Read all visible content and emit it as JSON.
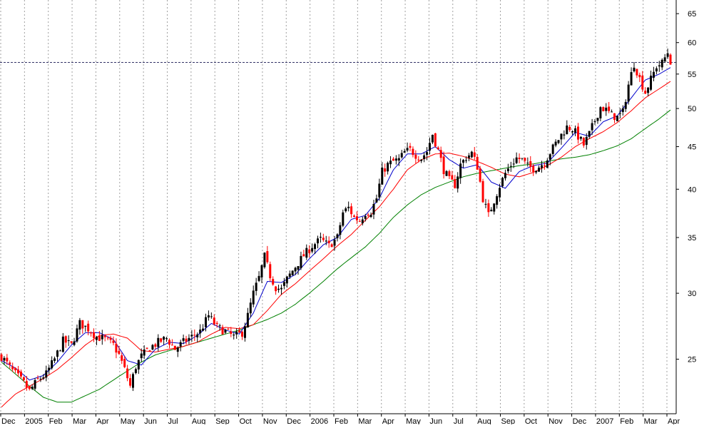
{
  "chart_data": {
    "type": "candlestick",
    "scale": "log",
    "grid": "vertical-dotted",
    "ylim": [
      21.5,
      67.5
    ],
    "y_ticks": [
      25,
      30,
      35,
      40,
      45,
      50,
      55,
      60,
      65
    ],
    "x_ticks": [
      "Dec",
      "2005",
      "Feb",
      "Mar",
      "Apr",
      "May",
      "Jun",
      "Jul",
      "Aug",
      "Sep",
      "Oct",
      "Nov",
      "Dec",
      "2006",
      "Feb",
      "Mar",
      "Apr",
      "May",
      "Jun",
      "Jul",
      "Aug",
      "Sep",
      "Oct",
      "Nov",
      "Dec",
      "2007",
      "Feb",
      "Mar",
      "Apr"
    ],
    "reference_line": 56.8,
    "colors": {
      "up": "#000000",
      "down": "#ff0000",
      "ma_short": "#0000cc",
      "ma_mid": "#ff0000",
      "ma_long": "#008000",
      "grid": "#a0a0a0"
    },
    "price_path": [
      [
        0,
        25.2
      ],
      [
        4,
        24.2
      ],
      [
        8,
        23.4
      ],
      [
        10,
        22.9
      ],
      [
        13,
        23.6
      ],
      [
        16,
        24.0
      ],
      [
        19,
        25.0
      ],
      [
        22,
        26.3
      ],
      [
        25,
        26.0
      ],
      [
        28,
        27.6
      ],
      [
        31,
        27.2
      ],
      [
        34,
        26.6
      ],
      [
        37,
        26.4
      ],
      [
        40,
        26.0
      ],
      [
        42,
        25.3
      ],
      [
        44,
        24.3
      ],
      [
        46,
        23.2
      ],
      [
        48,
        24.5
      ],
      [
        50,
        25.2
      ],
      [
        53,
        25.8
      ],
      [
        56,
        26.2
      ],
      [
        59,
        26.5
      ],
      [
        62,
        25.7
      ],
      [
        65,
        26.2
      ],
      [
        68,
        26.6
      ],
      [
        71,
        27.0
      ],
      [
        74,
        28.2
      ],
      [
        77,
        27.3
      ],
      [
        80,
        27.0
      ],
      [
        83,
        26.6
      ],
      [
        86,
        26.9
      ],
      [
        88,
        28.2
      ],
      [
        90,
        30.0
      ],
      [
        92,
        31.3
      ],
      [
        94,
        33.2
      ],
      [
        96,
        31.5
      ],
      [
        98,
        30.5
      ],
      [
        100,
        30.3
      ],
      [
        102,
        31.2
      ],
      [
        105,
        32.3
      ],
      [
        108,
        33.3
      ],
      [
        111,
        34.2
      ],
      [
        114,
        34.8
      ],
      [
        117,
        34.2
      ],
      [
        120,
        35.0
      ],
      [
        122,
        37.5
      ],
      [
        124,
        38.0
      ],
      [
        126,
        37.0
      ],
      [
        128,
        36.7
      ],
      [
        130,
        37.5
      ],
      [
        132,
        37.6
      ],
      [
        134,
        39.0
      ],
      [
        136,
        42.0
      ],
      [
        138,
        42.8
      ],
      [
        140,
        43.2
      ],
      [
        142,
        43.4
      ],
      [
        144,
        44.3
      ],
      [
        146,
        44.6
      ],
      [
        148,
        44.0
      ],
      [
        150,
        43.6
      ],
      [
        152,
        44.4
      ],
      [
        154,
        46.6
      ],
      [
        156,
        44.5
      ],
      [
        158,
        42.2
      ],
      [
        160,
        41.0
      ],
      [
        162,
        40.5
      ],
      [
        164,
        42.8
      ],
      [
        166,
        43.7
      ],
      [
        168,
        44.2
      ],
      [
        170,
        42.6
      ],
      [
        172,
        39.0
      ],
      [
        174,
        37.2
      ],
      [
        176,
        38.8
      ],
      [
        178,
        40.4
      ],
      [
        180,
        41.8
      ],
      [
        182,
        42.8
      ],
      [
        184,
        43.6
      ],
      [
        186,
        43.4
      ],
      [
        188,
        42.6
      ],
      [
        190,
        42.4
      ],
      [
        192,
        42.6
      ],
      [
        194,
        43.1
      ],
      [
        196,
        44.3
      ],
      [
        198,
        45.4
      ],
      [
        200,
        46.5
      ],
      [
        202,
        47.5
      ],
      [
        204,
        47.3
      ],
      [
        206,
        46.3
      ],
      [
        208,
        45.2
      ],
      [
        210,
        46.6
      ],
      [
        212,
        48.4
      ],
      [
        214,
        50.2
      ],
      [
        216,
        49.8
      ],
      [
        218,
        49.1
      ],
      [
        220,
        48.8
      ],
      [
        222,
        49.5
      ],
      [
        224,
        53.4
      ],
      [
        226,
        56.6
      ],
      [
        228,
        54.3
      ],
      [
        230,
        52.3
      ],
      [
        232,
        54.2
      ],
      [
        234,
        56.2
      ],
      [
        236,
        56.7
      ],
      [
        238,
        58.4
      ],
      [
        239,
        57.0
      ]
    ],
    "ma_short_path": [
      [
        0,
        24.9
      ],
      [
        5,
        24.4
      ],
      [
        10,
        23.6
      ],
      [
        15,
        23.9
      ],
      [
        20,
        24.8
      ],
      [
        25,
        26.0
      ],
      [
        30,
        26.9
      ],
      [
        35,
        26.9
      ],
      [
        40,
        26.4
      ],
      [
        45,
        24.9
      ],
      [
        50,
        24.6
      ],
      [
        55,
        25.7
      ],
      [
        60,
        26.2
      ],
      [
        65,
        26.1
      ],
      [
        70,
        26.7
      ],
      [
        75,
        27.6
      ],
      [
        80,
        27.1
      ],
      [
        85,
        26.8
      ],
      [
        90,
        28.4
      ],
      [
        95,
        31.0
      ],
      [
        100,
        30.9
      ],
      [
        105,
        31.6
      ],
      [
        110,
        33.0
      ],
      [
        115,
        34.3
      ],
      [
        120,
        35.0
      ],
      [
        125,
        36.8
      ],
      [
        130,
        37.2
      ],
      [
        135,
        39.0
      ],
      [
        140,
        42.2
      ],
      [
        145,
        44.1
      ],
      [
        150,
        44.1
      ],
      [
        155,
        45.0
      ],
      [
        160,
        43.4
      ],
      [
        165,
        42.4
      ],
      [
        170,
        42.8
      ],
      [
        175,
        40.8
      ],
      [
        180,
        40.1
      ],
      [
        185,
        42.0
      ],
      [
        190,
        42.7
      ],
      [
        195,
        43.0
      ],
      [
        200,
        44.8
      ],
      [
        205,
        46.8
      ],
      [
        210,
        46.3
      ],
      [
        215,
        48.2
      ],
      [
        220,
        49.0
      ],
      [
        225,
        51.5
      ],
      [
        230,
        54.1
      ],
      [
        235,
        55.0
      ],
      [
        239,
        56.0
      ]
    ],
    "ma_mid_path": [
      [
        0,
        21.9
      ],
      [
        5,
        22.7
      ],
      [
        10,
        23.2
      ],
      [
        15,
        23.7
      ],
      [
        20,
        24.3
      ],
      [
        25,
        25.1
      ],
      [
        30,
        26.0
      ],
      [
        35,
        26.7
      ],
      [
        40,
        26.8
      ],
      [
        45,
        26.5
      ],
      [
        50,
        25.6
      ],
      [
        55,
        25.5
      ],
      [
        60,
        25.7
      ],
      [
        65,
        25.9
      ],
      [
        70,
        26.2
      ],
      [
        75,
        26.8
      ],
      [
        80,
        27.3
      ],
      [
        85,
        27.2
      ],
      [
        90,
        27.5
      ],
      [
        95,
        28.6
      ],
      [
        100,
        29.9
      ],
      [
        105,
        30.8
      ],
      [
        110,
        31.9
      ],
      [
        115,
        33.0
      ],
      [
        120,
        34.2
      ],
      [
        125,
        35.3
      ],
      [
        130,
        36.7
      ],
      [
        135,
        38.1
      ],
      [
        140,
        40.0
      ],
      [
        145,
        42.2
      ],
      [
        150,
        43.4
      ],
      [
        155,
        44.1
      ],
      [
        160,
        44.2
      ],
      [
        165,
        43.8
      ],
      [
        170,
        43.2
      ],
      [
        175,
        42.5
      ],
      [
        180,
        41.7
      ],
      [
        185,
        41.4
      ],
      [
        190,
        41.9
      ],
      [
        195,
        42.7
      ],
      [
        200,
        43.7
      ],
      [
        205,
        45.0
      ],
      [
        210,
        46.0
      ],
      [
        215,
        46.9
      ],
      [
        220,
        48.1
      ],
      [
        225,
        49.7
      ],
      [
        230,
        51.5
      ],
      [
        235,
        52.8
      ],
      [
        239,
        53.9
      ]
    ],
    "ma_long_path": [
      [
        0,
        24.8
      ],
      [
        5,
        24.0
      ],
      [
        10,
        23.2
      ],
      [
        15,
        22.5
      ],
      [
        20,
        22.2
      ],
      [
        25,
        22.2
      ],
      [
        30,
        22.6
      ],
      [
        35,
        23.0
      ],
      [
        40,
        23.6
      ],
      [
        45,
        24.2
      ],
      [
        50,
        24.8
      ],
      [
        55,
        25.3
      ],
      [
        60,
        25.6
      ],
      [
        65,
        25.9
      ],
      [
        70,
        26.2
      ],
      [
        75,
        26.5
      ],
      [
        80,
        26.8
      ],
      [
        85,
        27.1
      ],
      [
        90,
        27.5
      ],
      [
        95,
        27.9
      ],
      [
        100,
        28.4
      ],
      [
        105,
        29.1
      ],
      [
        110,
        30.0
      ],
      [
        115,
        31.0
      ],
      [
        120,
        32.1
      ],
      [
        125,
        33.1
      ],
      [
        130,
        34.1
      ],
      [
        135,
        35.4
      ],
      [
        140,
        37.0
      ],
      [
        145,
        38.3
      ],
      [
        150,
        39.4
      ],
      [
        155,
        40.2
      ],
      [
        160,
        40.8
      ],
      [
        165,
        41.4
      ],
      [
        170,
        41.8
      ],
      [
        175,
        42.1
      ],
      [
        180,
        42.4
      ],
      [
        185,
        42.7
      ],
      [
        190,
        42.9
      ],
      [
        195,
        43.2
      ],
      [
        200,
        43.5
      ],
      [
        205,
        43.7
      ],
      [
        210,
        44.0
      ],
      [
        215,
        44.5
      ],
      [
        220,
        45.1
      ],
      [
        225,
        46.0
      ],
      [
        230,
        47.3
      ],
      [
        235,
        48.6
      ],
      [
        239,
        49.8
      ]
    ]
  }
}
